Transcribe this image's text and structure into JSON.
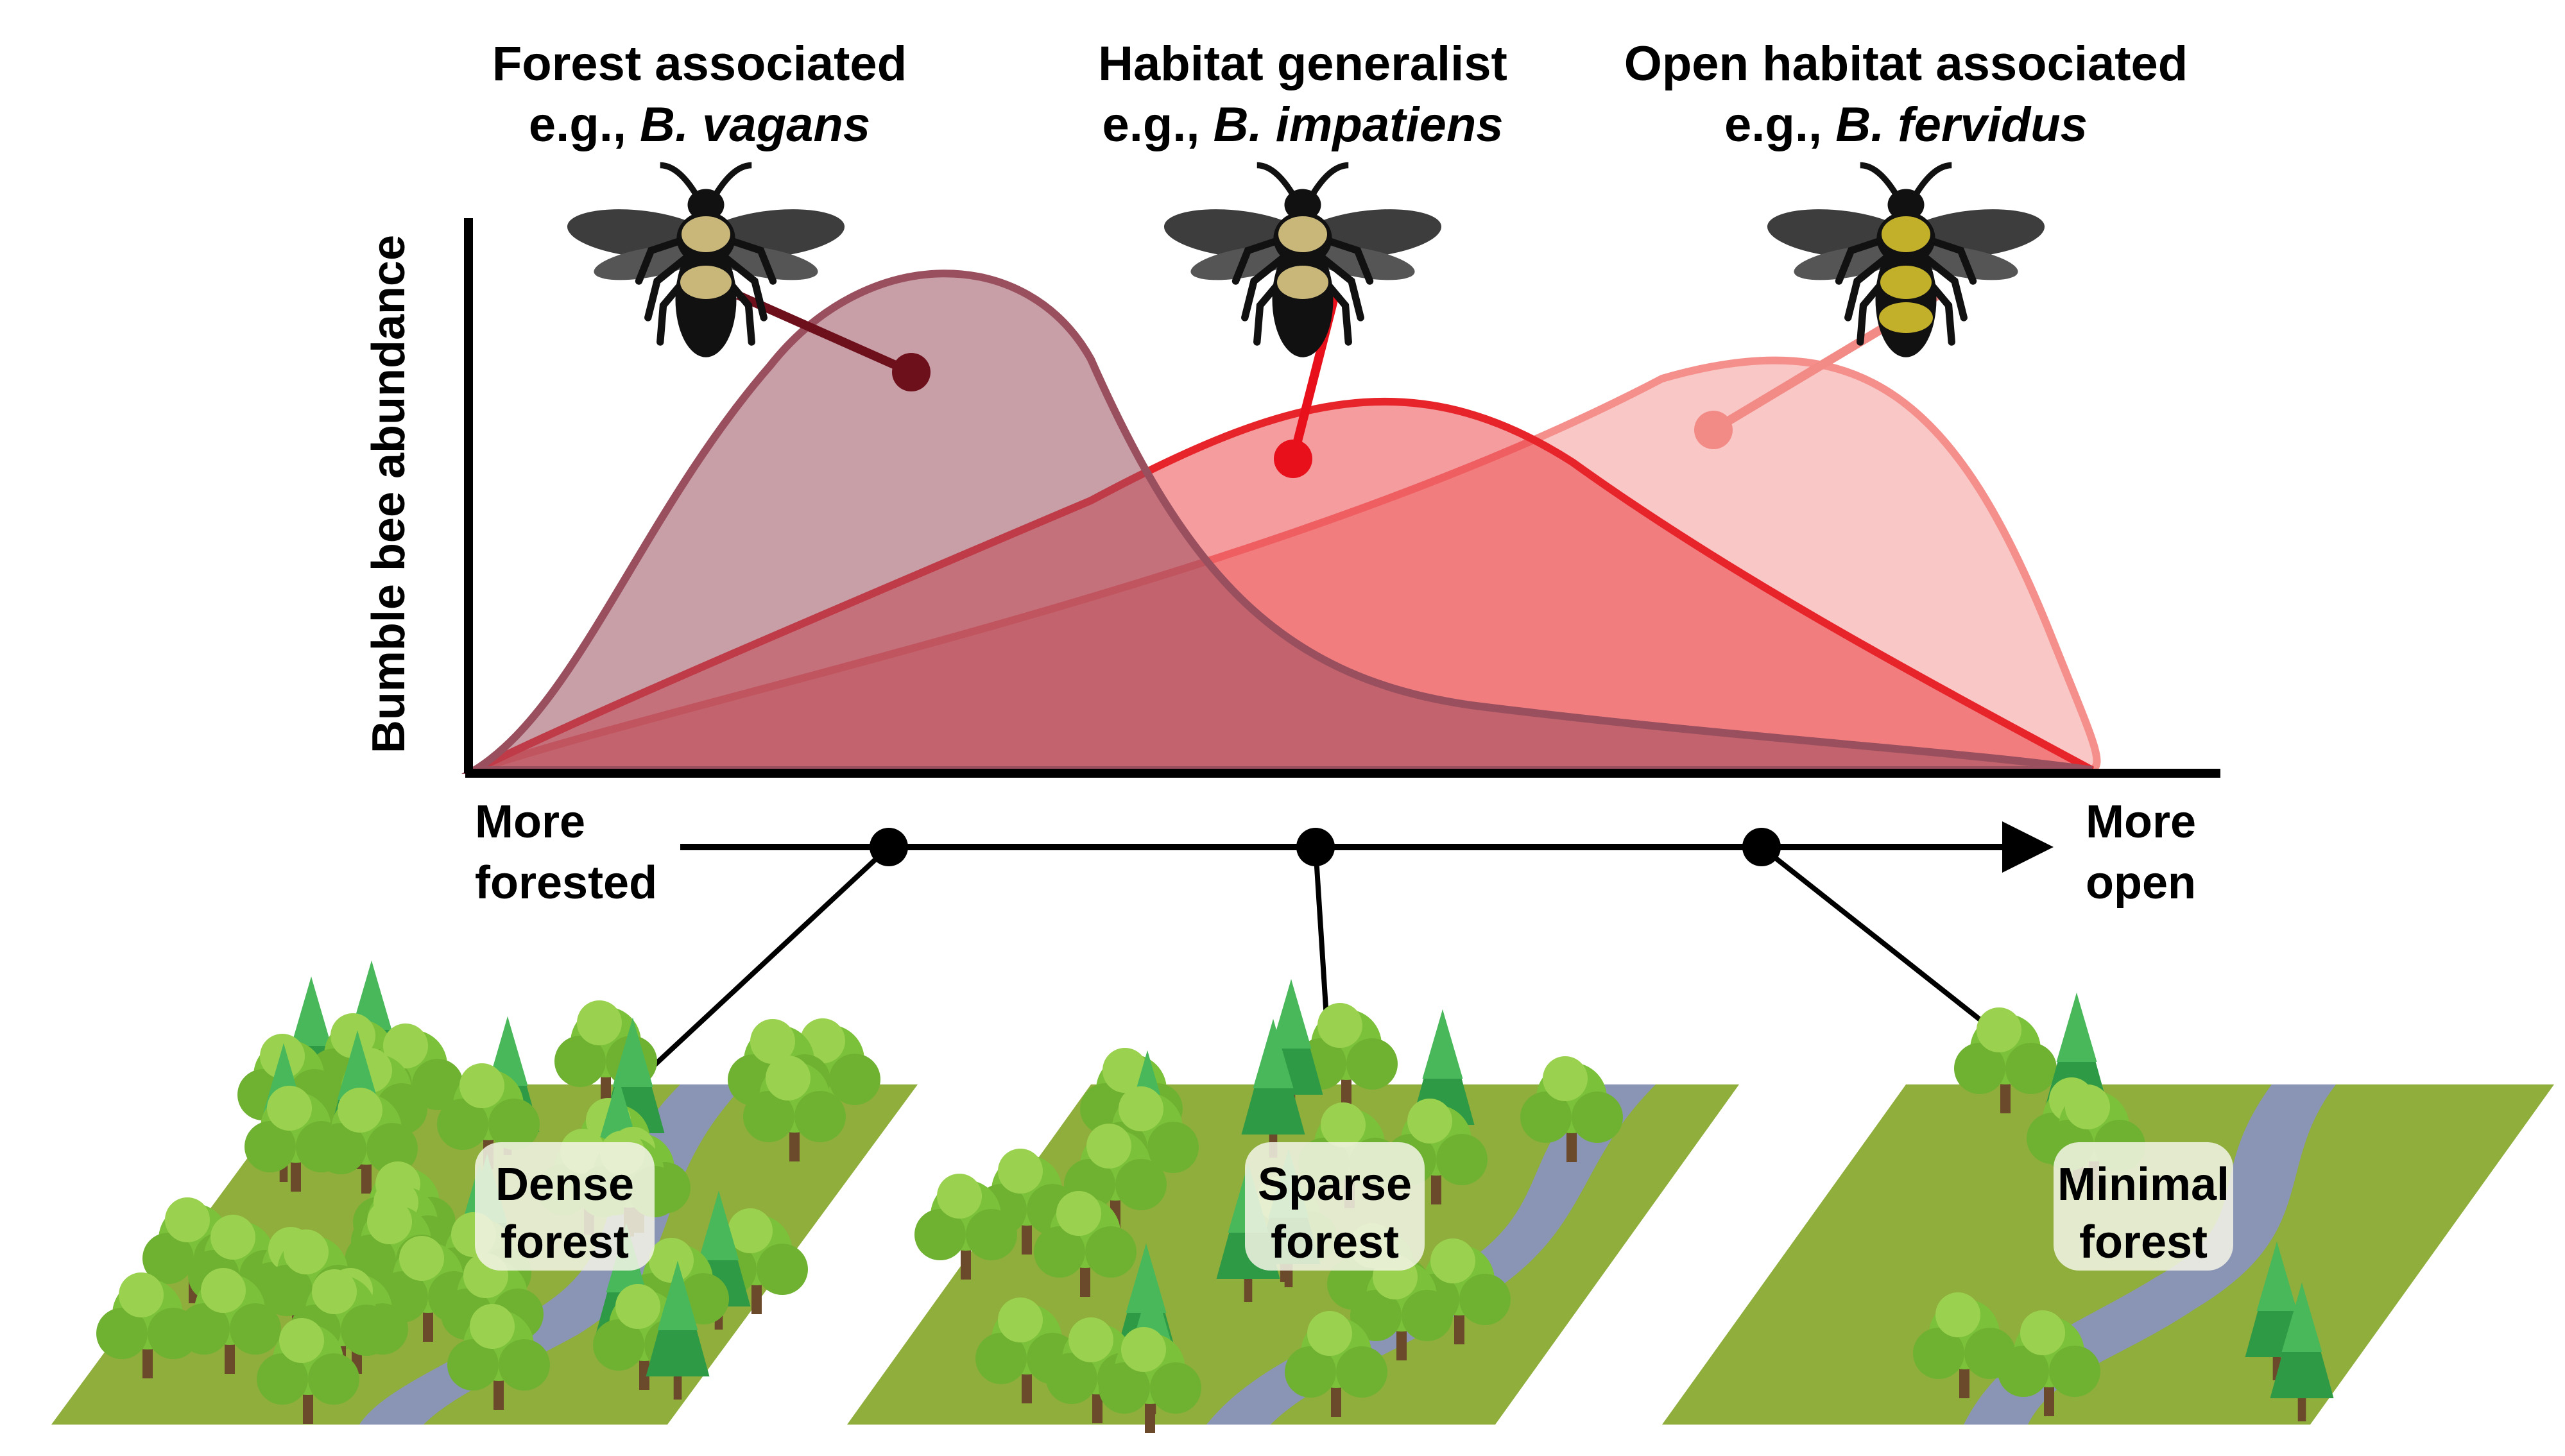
{
  "groups": [
    {
      "title": "Forest associated",
      "example_prefix": "e.g., ",
      "example_species": "B. vagans",
      "color": "#9a4f5e"
    },
    {
      "title": "Habitat generalist",
      "example_prefix": "e.g., ",
      "example_species": "B. impatiens",
      "color": "#e8242b"
    },
    {
      "title": "Open habitat associated",
      "example_prefix": "e.g., ",
      "example_species": "B. fervidus",
      "color": "#f48f8c"
    }
  ],
  "axis": {
    "y_label": "Bumble bee abundance",
    "x_left_line1": "More",
    "x_left_line2": "forested",
    "x_right_line1": "More",
    "x_right_line2": "open"
  },
  "landscapes": [
    {
      "line1": "Dense",
      "line2": "forest"
    },
    {
      "line1": "Sparse",
      "line2": "forest"
    },
    {
      "line1": "Minimal",
      "line2": "forest"
    }
  ],
  "colors": {
    "forest_curve": "#9a4f5e",
    "generalist_curve": "#e8242b",
    "open_curve": "#f48f8c",
    "grass": "#8fae3c",
    "river": "#8a94b4",
    "tree": "#7cc13a",
    "conifer": "#2f9a45"
  },
  "icons": [
    "bee-icon",
    "deciduous-tree-icon",
    "conifer-tree-icon"
  ]
}
